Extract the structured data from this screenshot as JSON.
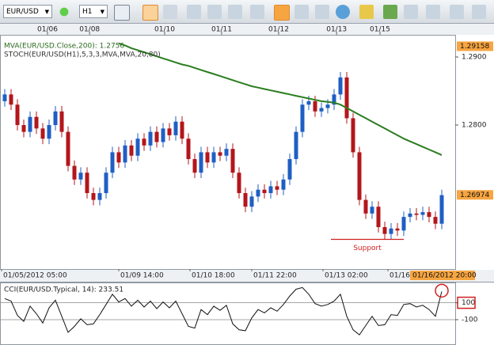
{
  "toolbar": {
    "symbol": "EUR/USD",
    "timeframe": "H1"
  },
  "chart_data": [
    {
      "type": "candlestick",
      "legend": [
        "MVA(EUR/USD.Close,200): 1.2756",
        "STOCH(EUR/USD(H1),5,3,3,MVA,MVA,20,80)"
      ],
      "up_color": "#1f5fc4",
      "down_color": "#b3161b",
      "open": [
        1.2835,
        1.2845,
        1.283,
        1.28,
        1.279,
        1.2812,
        1.2795,
        1.278,
        1.28,
        1.282,
        1.279,
        1.274,
        1.272,
        1.273,
        1.27,
        1.269,
        1.27,
        1.273,
        1.276,
        1.2745,
        1.277,
        1.2755,
        1.278,
        1.277,
        1.279,
        1.2775,
        1.2795,
        1.2785,
        1.2805,
        1.278,
        1.275,
        1.273,
        1.276,
        1.2745,
        1.276,
        1.2755,
        1.2765,
        1.273,
        1.27,
        1.268,
        1.2695,
        1.2705,
        1.27,
        1.271,
        1.2705,
        1.272,
        1.275,
        1.279,
        1.283,
        1.2835,
        1.282,
        1.2825,
        1.283,
        1.2845,
        1.287,
        1.281,
        1.276,
        1.269,
        1.267,
        1.268,
        1.265,
        1.264,
        1.2648,
        1.2645,
        1.2665,
        1.267,
        1.2668,
        1.2672,
        1.2665,
        1.2655
      ],
      "high": [
        1.2853,
        1.2853,
        1.2838,
        1.2808,
        1.282,
        1.282,
        1.2803,
        1.2808,
        1.2828,
        1.2828,
        1.2798,
        1.2748,
        1.2738,
        1.2738,
        1.2708,
        1.2708,
        1.2738,
        1.2768,
        1.2768,
        1.2778,
        1.2778,
        1.2788,
        1.2788,
        1.2798,
        1.2798,
        1.2803,
        1.2803,
        1.2813,
        1.2813,
        1.2788,
        1.2758,
        1.2768,
        1.2768,
        1.2768,
        1.2768,
        1.2773,
        1.2773,
        1.2738,
        1.2708,
        1.2703,
        1.2713,
        1.2713,
        1.2718,
        1.2718,
        1.2728,
        1.2758,
        1.2798,
        1.2838,
        1.2843,
        1.2843,
        1.2833,
        1.2838,
        1.2853,
        1.2878,
        1.2878,
        1.2818,
        1.2768,
        1.2698,
        1.2688,
        1.2688,
        1.2658,
        1.2656,
        1.2656,
        1.2673,
        1.2678,
        1.2678,
        1.268,
        1.268,
        1.2673,
        1.2705
      ],
      "low": [
        1.2827,
        1.2822,
        1.2792,
        1.2782,
        1.2782,
        1.2787,
        1.2772,
        1.2772,
        1.2792,
        1.2782,
        1.2732,
        1.2712,
        1.2712,
        1.2692,
        1.2682,
        1.2682,
        1.2692,
        1.2722,
        1.2737,
        1.2737,
        1.2747,
        1.2747,
        1.2762,
        1.2762,
        1.2767,
        1.2767,
        1.2777,
        1.2777,
        1.2772,
        1.2742,
        1.2722,
        1.2722,
        1.2737,
        1.2737,
        1.2747,
        1.2747,
        1.2722,
        1.2692,
        1.2672,
        1.2672,
        1.2687,
        1.2692,
        1.2692,
        1.2697,
        1.2697,
        1.2712,
        1.2742,
        1.2782,
        1.2822,
        1.2812,
        1.2812,
        1.2817,
        1.2822,
        1.2837,
        1.2802,
        1.2752,
        1.2682,
        1.2662,
        1.2662,
        1.2642,
        1.2632,
        1.2632,
        1.2637,
        1.2637,
        1.2657,
        1.266,
        1.266,
        1.2657,
        1.2647,
        1.2647
      ],
      "close": [
        1.2845,
        1.283,
        1.28,
        1.279,
        1.2812,
        1.2795,
        1.278,
        1.28,
        1.282,
        1.279,
        1.274,
        1.272,
        1.273,
        1.27,
        1.269,
        1.27,
        1.273,
        1.276,
        1.2745,
        1.277,
        1.2755,
        1.278,
        1.277,
        1.279,
        1.2775,
        1.2795,
        1.2785,
        1.2805,
        1.278,
        1.275,
        1.273,
        1.276,
        1.2745,
        1.276,
        1.2755,
        1.2765,
        1.273,
        1.27,
        1.268,
        1.2695,
        1.2705,
        1.27,
        1.271,
        1.2705,
        1.272,
        1.275,
        1.279,
        1.283,
        1.2835,
        1.282,
        1.2825,
        1.283,
        1.2845,
        1.287,
        1.281,
        1.276,
        1.269,
        1.267,
        1.268,
        1.265,
        1.264,
        1.2648,
        1.2645,
        1.2665,
        1.267,
        1.2668,
        1.2672,
        1.2665,
        1.2655,
        1.2697
      ],
      "series": [
        {
          "color": "#2a7d1e",
          "values": [
            null,
            null,
            null,
            null,
            null,
            null,
            null,
            null,
            null,
            null,
            null,
            null,
            null,
            null,
            null,
            null,
            null,
            null,
            1.292,
            1.2917,
            1.2913,
            1.291,
            1.2907,
            1.2904,
            1.2901,
            1.2898,
            1.2895,
            1.2892,
            1.2889,
            1.2887,
            1.2884,
            1.2881,
            1.2878,
            1.2875,
            1.2872,
            1.2869,
            1.2866,
            1.2863,
            1.286,
            1.2857,
            1.2855,
            1.2853,
            1.2851,
            1.2849,
            1.2847,
            1.2845,
            1.2843,
            1.2841,
            1.2839,
            1.2837,
            1.2835,
            1.2834,
            1.2833,
            1.283,
            1.2825,
            1.282,
            1.2815,
            1.281,
            1.2805,
            1.28,
            1.2795,
            1.279,
            1.2785,
            1.278,
            1.2776,
            1.2772,
            1.2768,
            1.2764,
            1.276,
            1.2756
          ]
        }
      ],
      "xlim": [
        -0.75,
        71.125
      ],
      "ylim": [
        1.25884,
        1.29326
      ],
      "yticks": [
        {
          "value": 1.29,
          "label": "1.2900"
        },
        {
          "value": 1.28,
          "label": "1.2800"
        }
      ],
      "top_xticks": [
        {
          "value": 6.75,
          "label": "01/06"
        },
        {
          "value": 13.4,
          "label": "01/08"
        },
        {
          "value": 25.25,
          "label": "01/10"
        },
        {
          "value": 34.25,
          "label": "01/11"
        },
        {
          "value": 43.25,
          "label": "01/12"
        },
        {
          "value": 52.4,
          "label": "01/13"
        },
        {
          "value": 59.25,
          "label": "01/15"
        }
      ],
      "xticks": [
        {
          "value": -0.5,
          "label": "01/05/2012 05:00"
        },
        {
          "value": 18,
          "label": "01/09 14:00"
        },
        {
          "value": 29.25,
          "label": "01/10 18:00"
        },
        {
          "value": 39,
          "label": "01/11 22:00"
        },
        {
          "value": 50.25,
          "label": "01/13 02:00"
        },
        {
          "value": 60.5,
          "label": "01/16 00:00"
        }
      ],
      "price_markers": [
        {
          "value": 1.29158,
          "label": "1.29158"
        },
        {
          "value": 1.26974,
          "label": "1.26974"
        }
      ],
      "last_time": "01/16/2012 20:00",
      "annotation": {
        "text": "Support",
        "value": 1.2632,
        "from": 54,
        "to": 63
      },
      "marker_color": "#f7a540"
    },
    {
      "type": "line",
      "title": "CCI(EUR/USD.Typical, 14): 233.51",
      "series": [
        {
          "color": "#111111",
          "values": [
            150,
            120,
            -50,
            -120,
            60,
            -30,
            -140,
            40,
            130,
            -60,
            -250,
            -180,
            -90,
            -160,
            -150,
            -40,
            80,
            200,
            110,
            150,
            60,
            130,
            50,
            120,
            30,
            110,
            40,
            120,
            -30,
            -180,
            -200,
            20,
            -40,
            60,
            10,
            70,
            -150,
            -220,
            -230,
            -80,
            20,
            -20,
            40,
            0,
            80,
            180,
            260,
            280,
            200,
            90,
            60,
            80,
            120,
            200,
            -60,
            -220,
            -280,
            -170,
            -60,
            -170,
            -160,
            -40,
            -50,
            80,
            90,
            50,
            70,
            20,
            -60,
            233.51
          ]
        }
      ],
      "xlim": [
        -0.75,
        71.125
      ],
      "ylim": [
        -400,
        340
      ],
      "yticks": [
        100,
        -100
      ]
    }
  ]
}
